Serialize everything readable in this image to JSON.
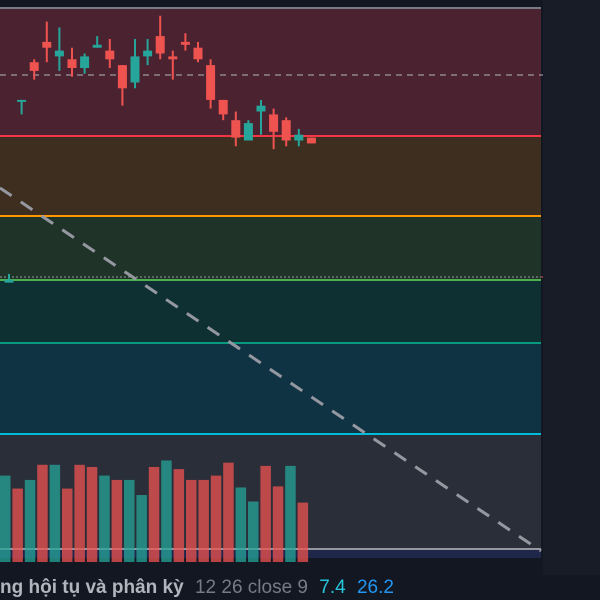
{
  "colors": {
    "background": "#131722",
    "bull": "#26a69a",
    "bear": "#ef5350",
    "fib_top": "#787b86",
    "fib_red": "#f23645",
    "fib_orange": "#ff9800",
    "fib_green": "#4caf50",
    "fib_teal": "#089981",
    "fib_cyan": "#00bcd4",
    "trend_line": "#9598a1"
  },
  "indicator_legend": {
    "name": "ng hội tụ và phân kỳ",
    "params": "12 26 close 9",
    "value_1": "7.4",
    "value_2": "26.2"
  },
  "candles": [
    {
      "o": 0.06,
      "h": 0.09,
      "l": 0.06,
      "c": 0.07
    },
    {
      "o": 0.69,
      "h": 0.69,
      "l": 0.64,
      "c": 0.69
    },
    {
      "o": 0.82,
      "h": 0.83,
      "l": 0.76,
      "c": 0.79
    },
    {
      "o": 0.89,
      "h": 0.96,
      "l": 0.82,
      "c": 0.87
    },
    {
      "o": 0.84,
      "h": 0.94,
      "l": 0.79,
      "c": 0.86
    },
    {
      "o": 0.83,
      "h": 0.87,
      "l": 0.77,
      "c": 0.8
    },
    {
      "o": 0.8,
      "h": 0.85,
      "l": 0.78,
      "c": 0.84
    },
    {
      "o": 0.87,
      "h": 0.91,
      "l": 0.87,
      "c": 0.88
    },
    {
      "o": 0.86,
      "h": 0.9,
      "l": 0.8,
      "c": 0.83
    },
    {
      "o": 0.81,
      "h": 0.81,
      "l": 0.67,
      "c": 0.73
    },
    {
      "o": 0.75,
      "h": 0.9,
      "l": 0.73,
      "c": 0.84
    },
    {
      "o": 0.84,
      "h": 0.9,
      "l": 0.81,
      "c": 0.86
    },
    {
      "o": 0.91,
      "h": 0.98,
      "l": 0.83,
      "c": 0.85
    },
    {
      "o": 0.84,
      "h": 0.86,
      "l": 0.76,
      "c": 0.83
    },
    {
      "o": 0.89,
      "h": 0.92,
      "l": 0.86,
      "c": 0.88
    },
    {
      "o": 0.87,
      "h": 0.89,
      "l": 0.82,
      "c": 0.83
    },
    {
      "o": 0.81,
      "h": 0.83,
      "l": 0.66,
      "c": 0.69
    },
    {
      "o": 0.69,
      "h": 0.69,
      "l": 0.62,
      "c": 0.64
    },
    {
      "o": 0.62,
      "h": 0.65,
      "l": 0.53,
      "c": 0.56
    },
    {
      "o": 0.55,
      "h": 0.62,
      "l": 0.55,
      "c": 0.61
    },
    {
      "o": 0.65,
      "h": 0.69,
      "l": 0.57,
      "c": 0.67
    },
    {
      "o": 0.64,
      "h": 0.66,
      "l": 0.52,
      "c": 0.58
    },
    {
      "o": 0.62,
      "h": 0.63,
      "l": 0.53,
      "c": 0.55
    },
    {
      "o": 0.55,
      "h": 0.59,
      "l": 0.53,
      "c": 0.57
    },
    {
      "o": 0.56,
      "h": 0.56,
      "l": 0.54,
      "c": 0.54
    }
  ],
  "volumes": [
    {
      "v": 0.8,
      "dir": "up"
    },
    {
      "v": 0.68,
      "dir": "down"
    },
    {
      "v": 0.76,
      "dir": "up"
    },
    {
      "v": 0.9,
      "dir": "down"
    },
    {
      "v": 0.9,
      "dir": "up"
    },
    {
      "v": 0.68,
      "dir": "down"
    },
    {
      "v": 0.9,
      "dir": "down"
    },
    {
      "v": 0.88,
      "dir": "down"
    },
    {
      "v": 0.8,
      "dir": "up"
    },
    {
      "v": 0.76,
      "dir": "down"
    },
    {
      "v": 0.76,
      "dir": "up"
    },
    {
      "v": 0.62,
      "dir": "up"
    },
    {
      "v": 0.88,
      "dir": "down"
    },
    {
      "v": 0.94,
      "dir": "up"
    },
    {
      "v": 0.86,
      "dir": "down"
    },
    {
      "v": 0.76,
      "dir": "down"
    },
    {
      "v": 0.76,
      "dir": "down"
    },
    {
      "v": 0.8,
      "dir": "down"
    },
    {
      "v": 0.92,
      "dir": "down"
    },
    {
      "v": 0.69,
      "dir": "up"
    },
    {
      "v": 0.56,
      "dir": "up"
    },
    {
      "v": 0.89,
      "dir": "down"
    },
    {
      "v": 0.7,
      "dir": "down"
    },
    {
      "v": 0.89,
      "dir": "up"
    },
    {
      "v": 0.55,
      "dir": "down"
    }
  ]
}
